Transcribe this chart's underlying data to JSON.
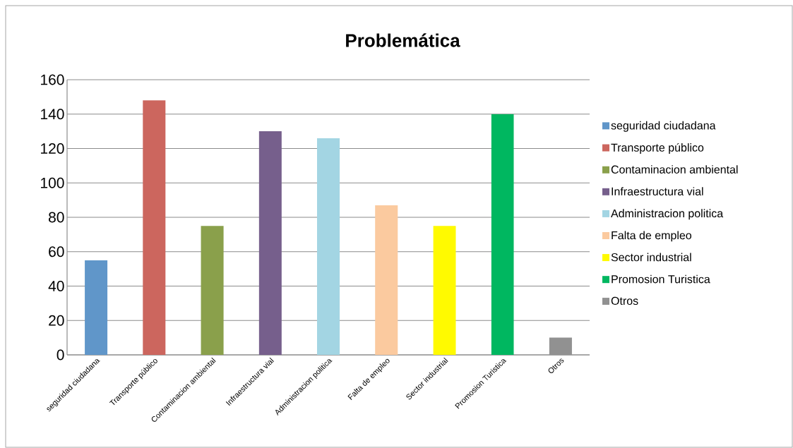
{
  "chart_data": {
    "type": "bar",
    "title": "Problemática",
    "categories": [
      "seguridad ciudadana",
      "Transporte público",
      "Contaminacion ambiental",
      "Infraestructura vial",
      "Administracion politica",
      "Falta de empleo",
      "Sector industrial",
      "Promosion Turistica",
      "Otros"
    ],
    "series": [
      {
        "name": "seguridad ciudadana",
        "color": "#6096c9",
        "values": [
          55,
          null,
          null,
          null,
          null,
          null,
          null,
          null,
          null
        ]
      },
      {
        "name": "Transporte público",
        "color": "#cc665e",
        "values": [
          null,
          148,
          null,
          null,
          null,
          null,
          null,
          null,
          null
        ]
      },
      {
        "name": "Contaminacion ambiental",
        "color": "#8aa04b",
        "values": [
          null,
          null,
          75,
          null,
          null,
          null,
          null,
          null,
          null
        ]
      },
      {
        "name": "Infraestructura vial",
        "color": "#765f8c",
        "values": [
          null,
          null,
          null,
          130,
          null,
          null,
          null,
          null,
          null
        ]
      },
      {
        "name": "Administracion politica",
        "color": "#a3d5e3",
        "values": [
          null,
          null,
          null,
          null,
          126,
          null,
          null,
          null,
          null
        ]
      },
      {
        "name": "Falta de empleo",
        "color": "#fbca9f",
        "values": [
          null,
          null,
          null,
          null,
          null,
          87,
          null,
          null,
          null
        ]
      },
      {
        "name": "Sector industrial",
        "color": "#fffa00",
        "values": [
          null,
          null,
          null,
          null,
          null,
          null,
          75,
          null,
          null
        ]
      },
      {
        "name": "Promosion Turistica",
        "color": "#00b760",
        "values": [
          null,
          null,
          null,
          null,
          null,
          null,
          null,
          140,
          null
        ]
      },
      {
        "name": "Otros",
        "color": "#919191",
        "values": [
          null,
          null,
          null,
          null,
          null,
          null,
          null,
          null,
          10
        ]
      }
    ],
    "ylim": [
      0,
      160
    ],
    "yticks": [
      0,
      20,
      40,
      60,
      80,
      100,
      120,
      140,
      160
    ],
    "grid": "y",
    "legend": "right"
  }
}
